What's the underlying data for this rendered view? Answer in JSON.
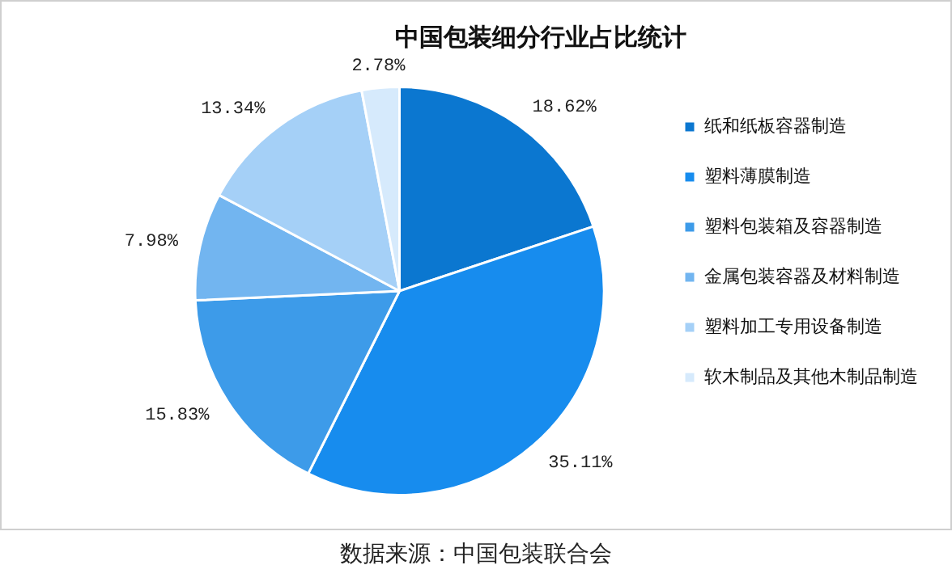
{
  "chart_data": {
    "type": "pie",
    "title": "中国包装细分行业占比统计",
    "categories": [
      "纸和纸板容器制造",
      "塑料薄膜制造",
      "塑料包装箱及容器制造",
      "金属包装容器及材料制造",
      "塑料加工专用设备制造",
      "软木制品及其他木制品制造"
    ],
    "values": [
      18.62,
      35.11,
      15.83,
      7.98,
      13.34,
      2.78
    ],
    "value_labels": [
      "18.62%",
      "35.11%",
      "15.83%",
      "7.98%",
      "13.34%",
      "2.78%"
    ],
    "colors": [
      "#0b77d0",
      "#178cee",
      "#3d9be9",
      "#72b5f0",
      "#a5d0f7",
      "#d6eafc"
    ],
    "legend": "right",
    "annotations": [
      "数据来源：中国包装联合会"
    ]
  }
}
